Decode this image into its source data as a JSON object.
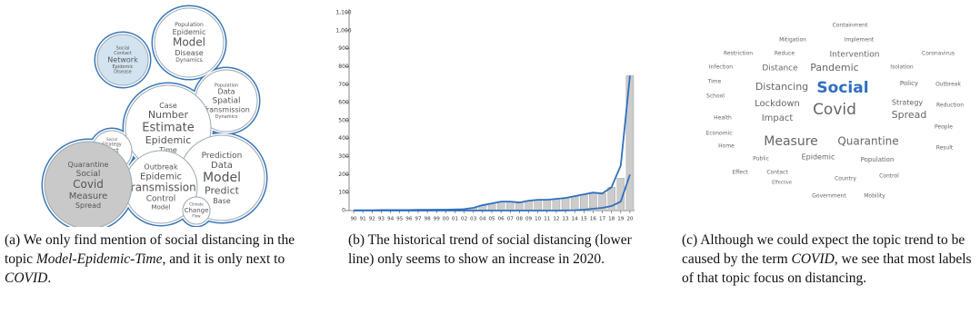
{
  "panel_a": {
    "bubbles": [
      {
        "words": [
          "Population",
          "Epidemic",
          "Model",
          "Disease",
          "Dynamics"
        ]
      },
      {
        "words": [
          "Social",
          "Contact",
          "Network",
          "Epidemic",
          "Disease"
        ]
      },
      {
        "words": [
          "Population",
          "Data",
          "Spatial",
          "Transmission",
          "Dynamics"
        ]
      },
      {
        "words": [
          "Case",
          "Number",
          "Estimate",
          "Epidemic",
          "Time"
        ]
      },
      {
        "words": [
          "Social",
          "Strategy",
          "Cost",
          "Control",
          "Vaccination"
        ]
      },
      {
        "words": [
          "Prediction",
          "Data",
          "Model",
          "Predict",
          "Base"
        ]
      },
      {
        "words": [
          "Outbreak",
          "Epidemic",
          "Transmission",
          "Control",
          "Model"
        ]
      },
      {
        "words": [
          "Quarantine",
          "Social",
          "Covid",
          "Measure",
          "Spread"
        ]
      },
      {
        "words": [
          "Climate",
          "Change",
          "Flow"
        ]
      }
    ],
    "caption": [
      "(a) We only find mention of social distancing in the topic ",
      "Model-Epidemic-Time",
      ", and it is only next to ",
      "COVID",
      "."
    ]
  },
  "chart_data": {
    "type": "bar",
    "categories": [
      "90",
      "91",
      "92",
      "93",
      "94",
      "95",
      "96",
      "97",
      "98",
      "99",
      "00",
      "01",
      "02",
      "03",
      "04",
      "05",
      "06",
      "07",
      "08",
      "09",
      "10",
      "11",
      "12",
      "13",
      "14",
      "15",
      "16",
      "17",
      "18",
      "19",
      "20"
    ],
    "series": [
      {
        "type": "bar",
        "color": "#cccccc",
        "values": [
          2,
          2,
          2,
          3,
          3,
          3,
          3,
          4,
          4,
          5,
          5,
          6,
          8,
          15,
          30,
          40,
          50,
          50,
          45,
          55,
          60,
          60,
          65,
          70,
          80,
          90,
          100,
          95,
          130,
          180,
          750
        ]
      },
      {
        "type": "line",
        "color": "#2f6fbf",
        "values": [
          2,
          2,
          2,
          3,
          3,
          3,
          3,
          4,
          4,
          5,
          5,
          6,
          8,
          15,
          30,
          40,
          50,
          50,
          45,
          55,
          60,
          60,
          65,
          70,
          80,
          90,
          100,
          95,
          130,
          250,
          750
        ]
      },
      {
        "type": "line",
        "color": "#2f6fbf",
        "values": [
          0,
          0,
          0,
          0,
          0,
          0,
          0,
          0,
          0,
          0,
          0,
          0,
          0,
          0,
          0,
          0,
          0,
          0,
          0,
          0,
          0,
          0,
          0,
          1,
          2,
          5,
          10,
          15,
          25,
          50,
          200
        ]
      }
    ],
    "ylim": [
      0,
      1100
    ],
    "yticks": [
      0,
      100,
      200,
      300,
      400,
      500,
      600,
      700,
      800,
      900,
      {
        "value": 1000,
        "label": "1,000"
      },
      {
        "value": 1100,
        "label": "1,100"
      }
    ]
  },
  "panel_b": {
    "caption": [
      "(b) The historical trend of social distancing (lower line) only seems to show an increase in 2020."
    ]
  },
  "panel_c": {
    "words": [
      "Containment",
      "Mitigation",
      "Implement",
      "Restriction",
      "Reduce",
      "Intervention",
      "Coronavirus",
      "Infection",
      "Distance",
      "Pandemic",
      "Isolation",
      "Time",
      "Distancing",
      "Social",
      "Policy",
      "Outbreak",
      "School",
      "Lockdown",
      "Strategy",
      "Reduction",
      "Health",
      "Impact",
      "Covid",
      "Spread",
      "People",
      "Economic",
      "Measure",
      "Quarantine",
      "Home",
      "Result",
      "Public",
      "Epidemic",
      "Population",
      "Effect",
      "Contact",
      "Country",
      "Control",
      "Effective",
      "Government",
      "Mobility"
    ],
    "caption": [
      "(c) Although we could expect the topic trend to be caused by the term ",
      "COVID",
      ", we see that most labels of that topic focus on distancing."
    ]
  }
}
